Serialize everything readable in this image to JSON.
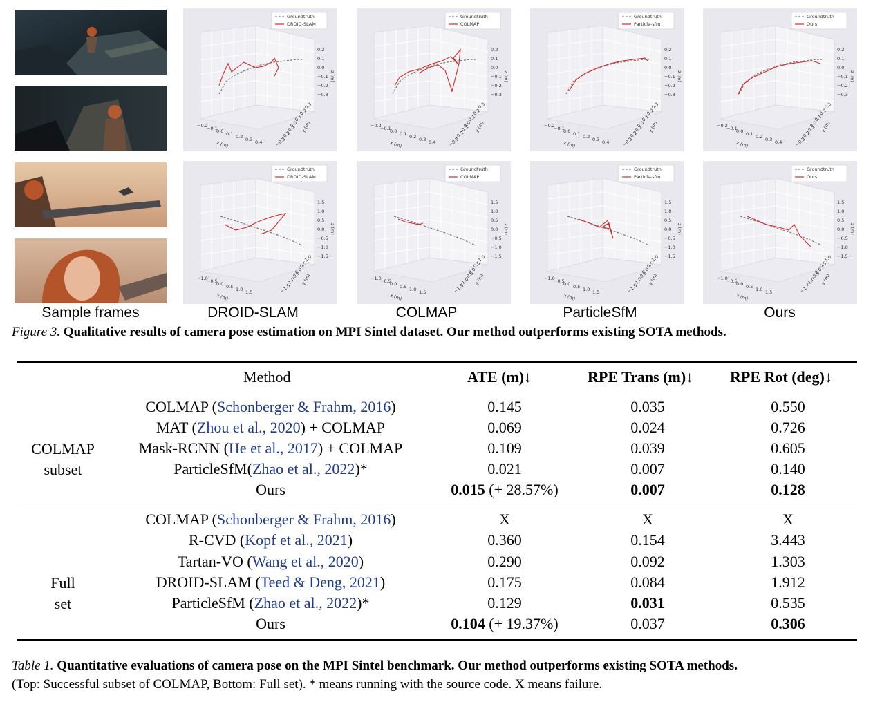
{
  "figure": {
    "row_labels": [
      "Sample frames",
      "DROID-SLAM",
      "COLMAP",
      "ParticleSfM",
      "Ours"
    ],
    "plots": {
      "legend_groundtruth": "Groundtruth",
      "row1_legends": [
        "DROID-SLAM",
        "COLMAP",
        "Particle-sfm",
        "Ours"
      ],
      "row2_legends": [
        "DROID-SLAM",
        "COLMAP",
        "Particle-sfm",
        "Ours"
      ],
      "row1_z_ticks": [
        "0.2",
        "0.1",
        "0.0",
        "−0.1",
        "−0.2",
        "−0.3"
      ],
      "row1_x_ticks": [
        "−0.2",
        "−0.1",
        "0.0",
        "0.1",
        "0.2",
        "0.3",
        "0.4"
      ],
      "row1_y_ticks": [
        "0.3",
        "0.2",
        "0.1",
        "0.0",
        "−0.1",
        "−0.2",
        "−0.3"
      ],
      "row2_z_ticks": [
        "1.5",
        "1.0",
        "0.5",
        "0.0",
        "−0.5",
        "−1.0",
        "−1.5"
      ],
      "row2_x_ticks": [
        "−1.0",
        "−0.5",
        "0.0",
        "0.5",
        "1.0",
        "1.5"
      ],
      "row2_y_ticks": [
        "1.0",
        "0.5",
        "0.0",
        "−0.5",
        "−1.0",
        "−1.5"
      ],
      "x_label": "x (m)",
      "y_label": "y (m)",
      "z_label": "z (m)"
    },
    "caption_lead": "Figure 3.",
    "caption_text": "Qualitative results of camera pose estimation on MPI Sintel dataset. Our method outperforms existing SOTA methods."
  },
  "table": {
    "headers": [
      "Method",
      "ATE (m)↓",
      "RPE Trans (m)↓",
      "RPE Rot (deg)↓"
    ],
    "groups": [
      {
        "label_line1": "COLMAP",
        "label_line2": "subset",
        "rows": [
          {
            "pre": "COLMAP (",
            "cite": "Schonberger & Frahm, 2016",
            "post": ")",
            "ate": "0.145",
            "ate_extra": "",
            "rpe_t": "0.035",
            "rpe_r": "0.550"
          },
          {
            "pre": "MAT (",
            "cite": "Zhou et al., 2020",
            "post": ") + COLMAP",
            "ate": "0.069",
            "ate_extra": "",
            "rpe_t": "0.024",
            "rpe_r": "0.726"
          },
          {
            "pre": "Mask-RCNN (",
            "cite": "He et al., 2017",
            "post": ") + COLMAP",
            "ate": "0.109",
            "ate_extra": "",
            "rpe_t": "0.039",
            "rpe_r": "0.605"
          },
          {
            "pre": "ParticleSfM(",
            "cite": "Zhao et al., 2022",
            "post": ")*",
            "ate": "0.021",
            "ate_extra": "",
            "rpe_t": "0.007",
            "rpe_r": "0.140"
          },
          {
            "pre": "Ours",
            "cite": "",
            "post": "",
            "ate": "0.015",
            "ate_extra": " (+ 28.57%)",
            "rpe_t": "0.007",
            "rpe_r": "0.128"
          }
        ]
      },
      {
        "label_line1": "Full",
        "label_line2": "set",
        "rows": [
          {
            "pre": "COLMAP (",
            "cite": "Schonberger & Frahm, 2016",
            "post": ")",
            "ate": "X",
            "ate_extra": "",
            "rpe_t": "X",
            "rpe_r": "X"
          },
          {
            "pre": "R-CVD (",
            "cite": "Kopf et al., 2021",
            "post": ")",
            "ate": "0.360",
            "ate_extra": "",
            "rpe_t": "0.154",
            "rpe_r": "3.443"
          },
          {
            "pre": "Tartan-VO (",
            "cite": "Wang et al., 2020",
            "post": ")",
            "ate": "0.290",
            "ate_extra": "",
            "rpe_t": "0.092",
            "rpe_r": "1.303"
          },
          {
            "pre": "DROID-SLAM (",
            "cite": "Teed & Deng, 2021",
            "post": ")",
            "ate": "0.175",
            "ate_extra": "",
            "rpe_t": "0.084",
            "rpe_r": "1.912"
          },
          {
            "pre": "ParticleSfM (",
            "cite": "Zhao et al., 2022",
            "post": ")*",
            "ate": "0.129",
            "ate_extra": "",
            "rpe_t": "0.031",
            "rpe_r": "0.535"
          },
          {
            "pre": "Ours",
            "cite": "",
            "post": "",
            "ate": "0.104",
            "ate_extra": " (+ 19.37%)",
            "rpe_t": "0.037",
            "rpe_r": "0.306"
          }
        ]
      }
    ],
    "caption_lead": "Table 1.",
    "caption_text": "Quantitative evaluations of camera pose on the MPI Sintel benchmark. Our method outperforms existing SOTA methods.",
    "caption_line2": "(Top: Successful subset of COLMAP, Bottom: Full set). * means running with the source code. X means failure."
  }
}
